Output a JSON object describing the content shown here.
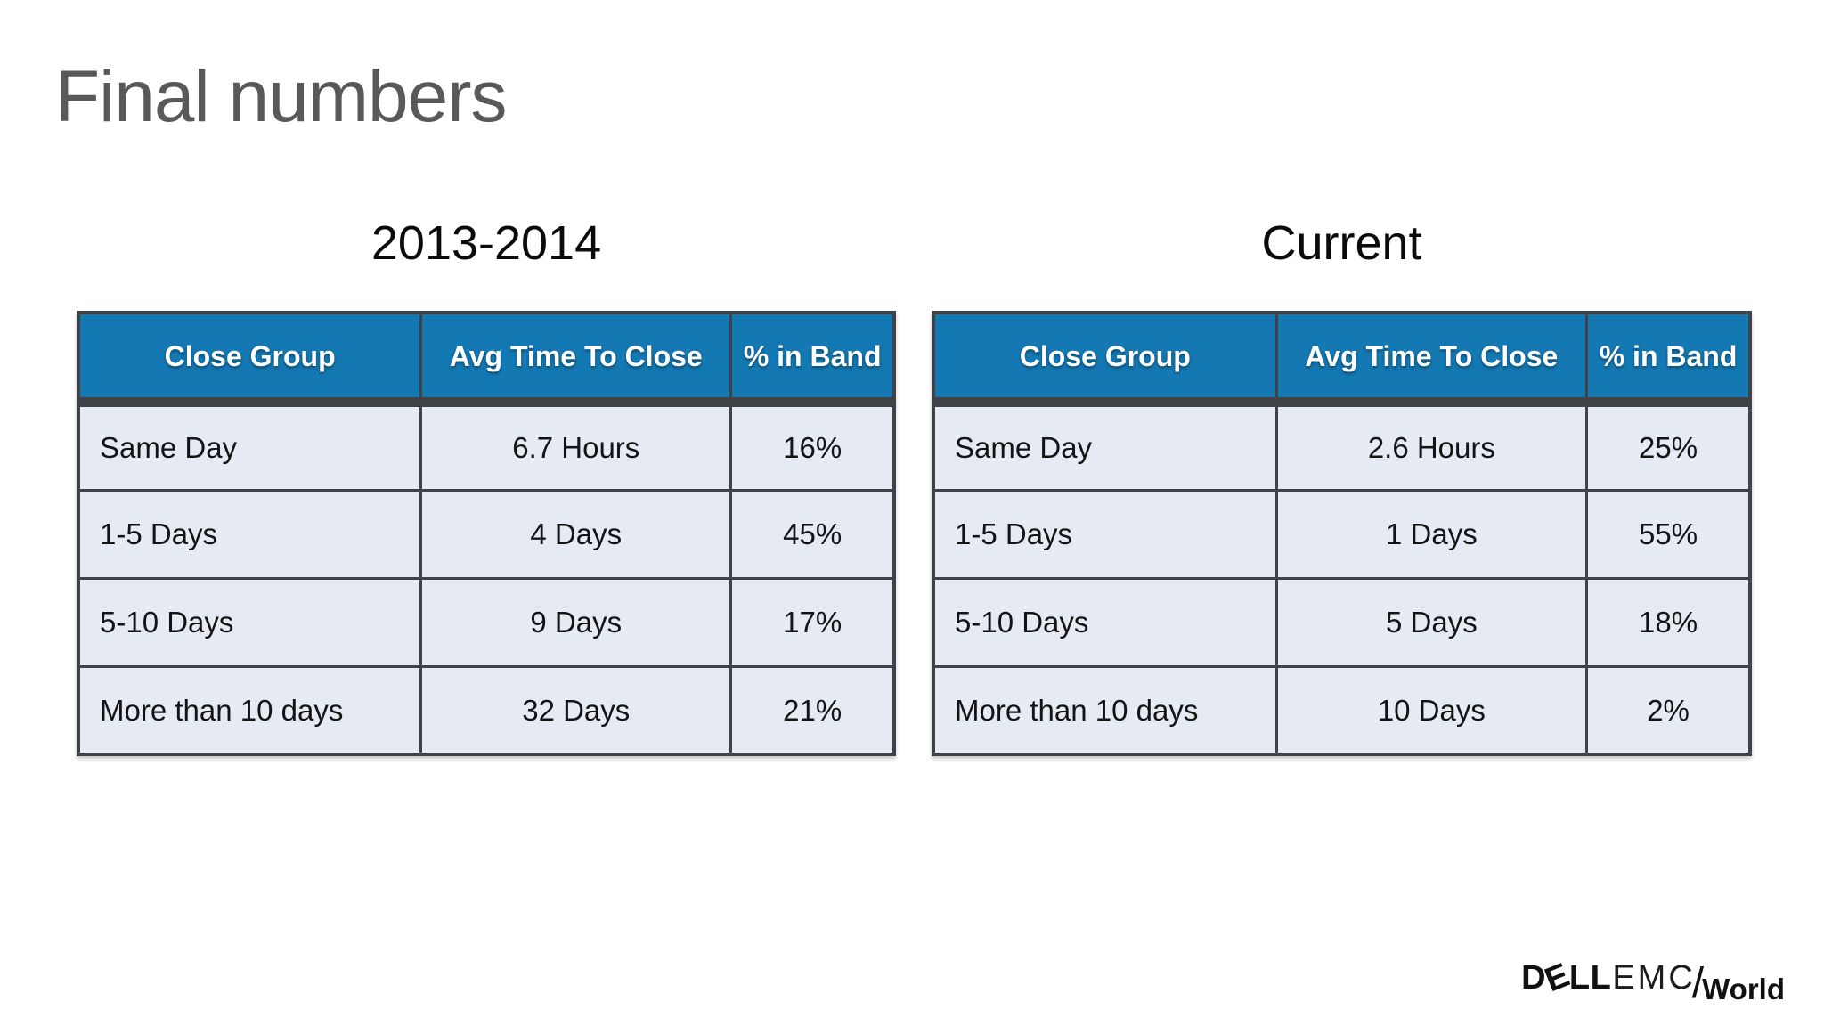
{
  "slide": {
    "title": "Final numbers"
  },
  "tables": [
    {
      "caption": "2013-2014",
      "headers": [
        "Close Group",
        "Avg Time To Close",
        "% in Band"
      ],
      "rows": [
        [
          "Same Day",
          "6.7 Hours",
          "16%"
        ],
        [
          "1-5 Days",
          "4 Days",
          "45%"
        ],
        [
          "5-10 Days",
          "9 Days",
          "17%"
        ],
        [
          "More than 10 days",
          "32 Days",
          "21%"
        ]
      ]
    },
    {
      "caption": "Current",
      "headers": [
        "Close Group",
        "Avg Time To Close",
        "% in Band"
      ],
      "rows": [
        [
          "Same Day",
          "2.6 Hours",
          "25%"
        ],
        [
          "1-5 Days",
          "1 Days",
          "55%"
        ],
        [
          "5-10 Days",
          "5 Days",
          "18%"
        ],
        [
          "More than 10 days",
          "10 Days",
          "2%"
        ]
      ]
    }
  ],
  "logo": {
    "dell_d": "D",
    "dell_e": "E",
    "dell_ll": "LL",
    "emc": "EMC",
    "slash": "/",
    "world": "World"
  },
  "colors": {
    "header_blue": "#1478b2",
    "row_background": "#e6eaf3",
    "border_dark": "#3f4347",
    "title_gray": "#58595b",
    "background": "#ffffff"
  }
}
